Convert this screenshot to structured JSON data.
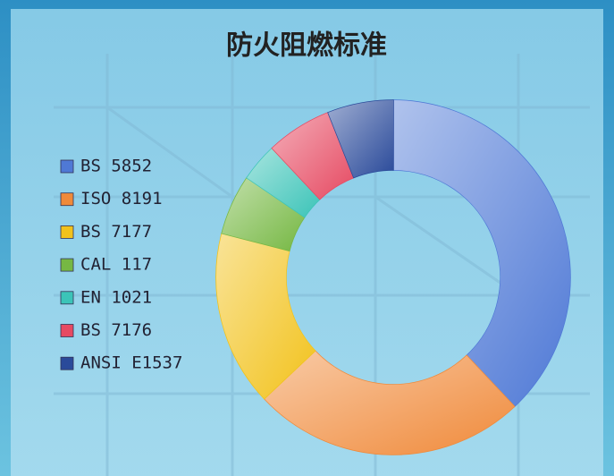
{
  "chart_data": {
    "type": "donut",
    "title": "防火阻燃标准",
    "categories": [
      "BS 5852",
      "ISO 8191",
      "BS 7177",
      "CAL 117",
      "EN 1021",
      "BS 7176",
      "ANSI E1537"
    ],
    "values": [
      38,
      25,
      16,
      5.5,
      3.5,
      6,
      6
    ],
    "colors": [
      "#4f79d6",
      "#f08a3a",
      "#f2c21b",
      "#76b843",
      "#3cc4b8",
      "#e64a62",
      "#2a4a9a"
    ],
    "legend": "left"
  }
}
